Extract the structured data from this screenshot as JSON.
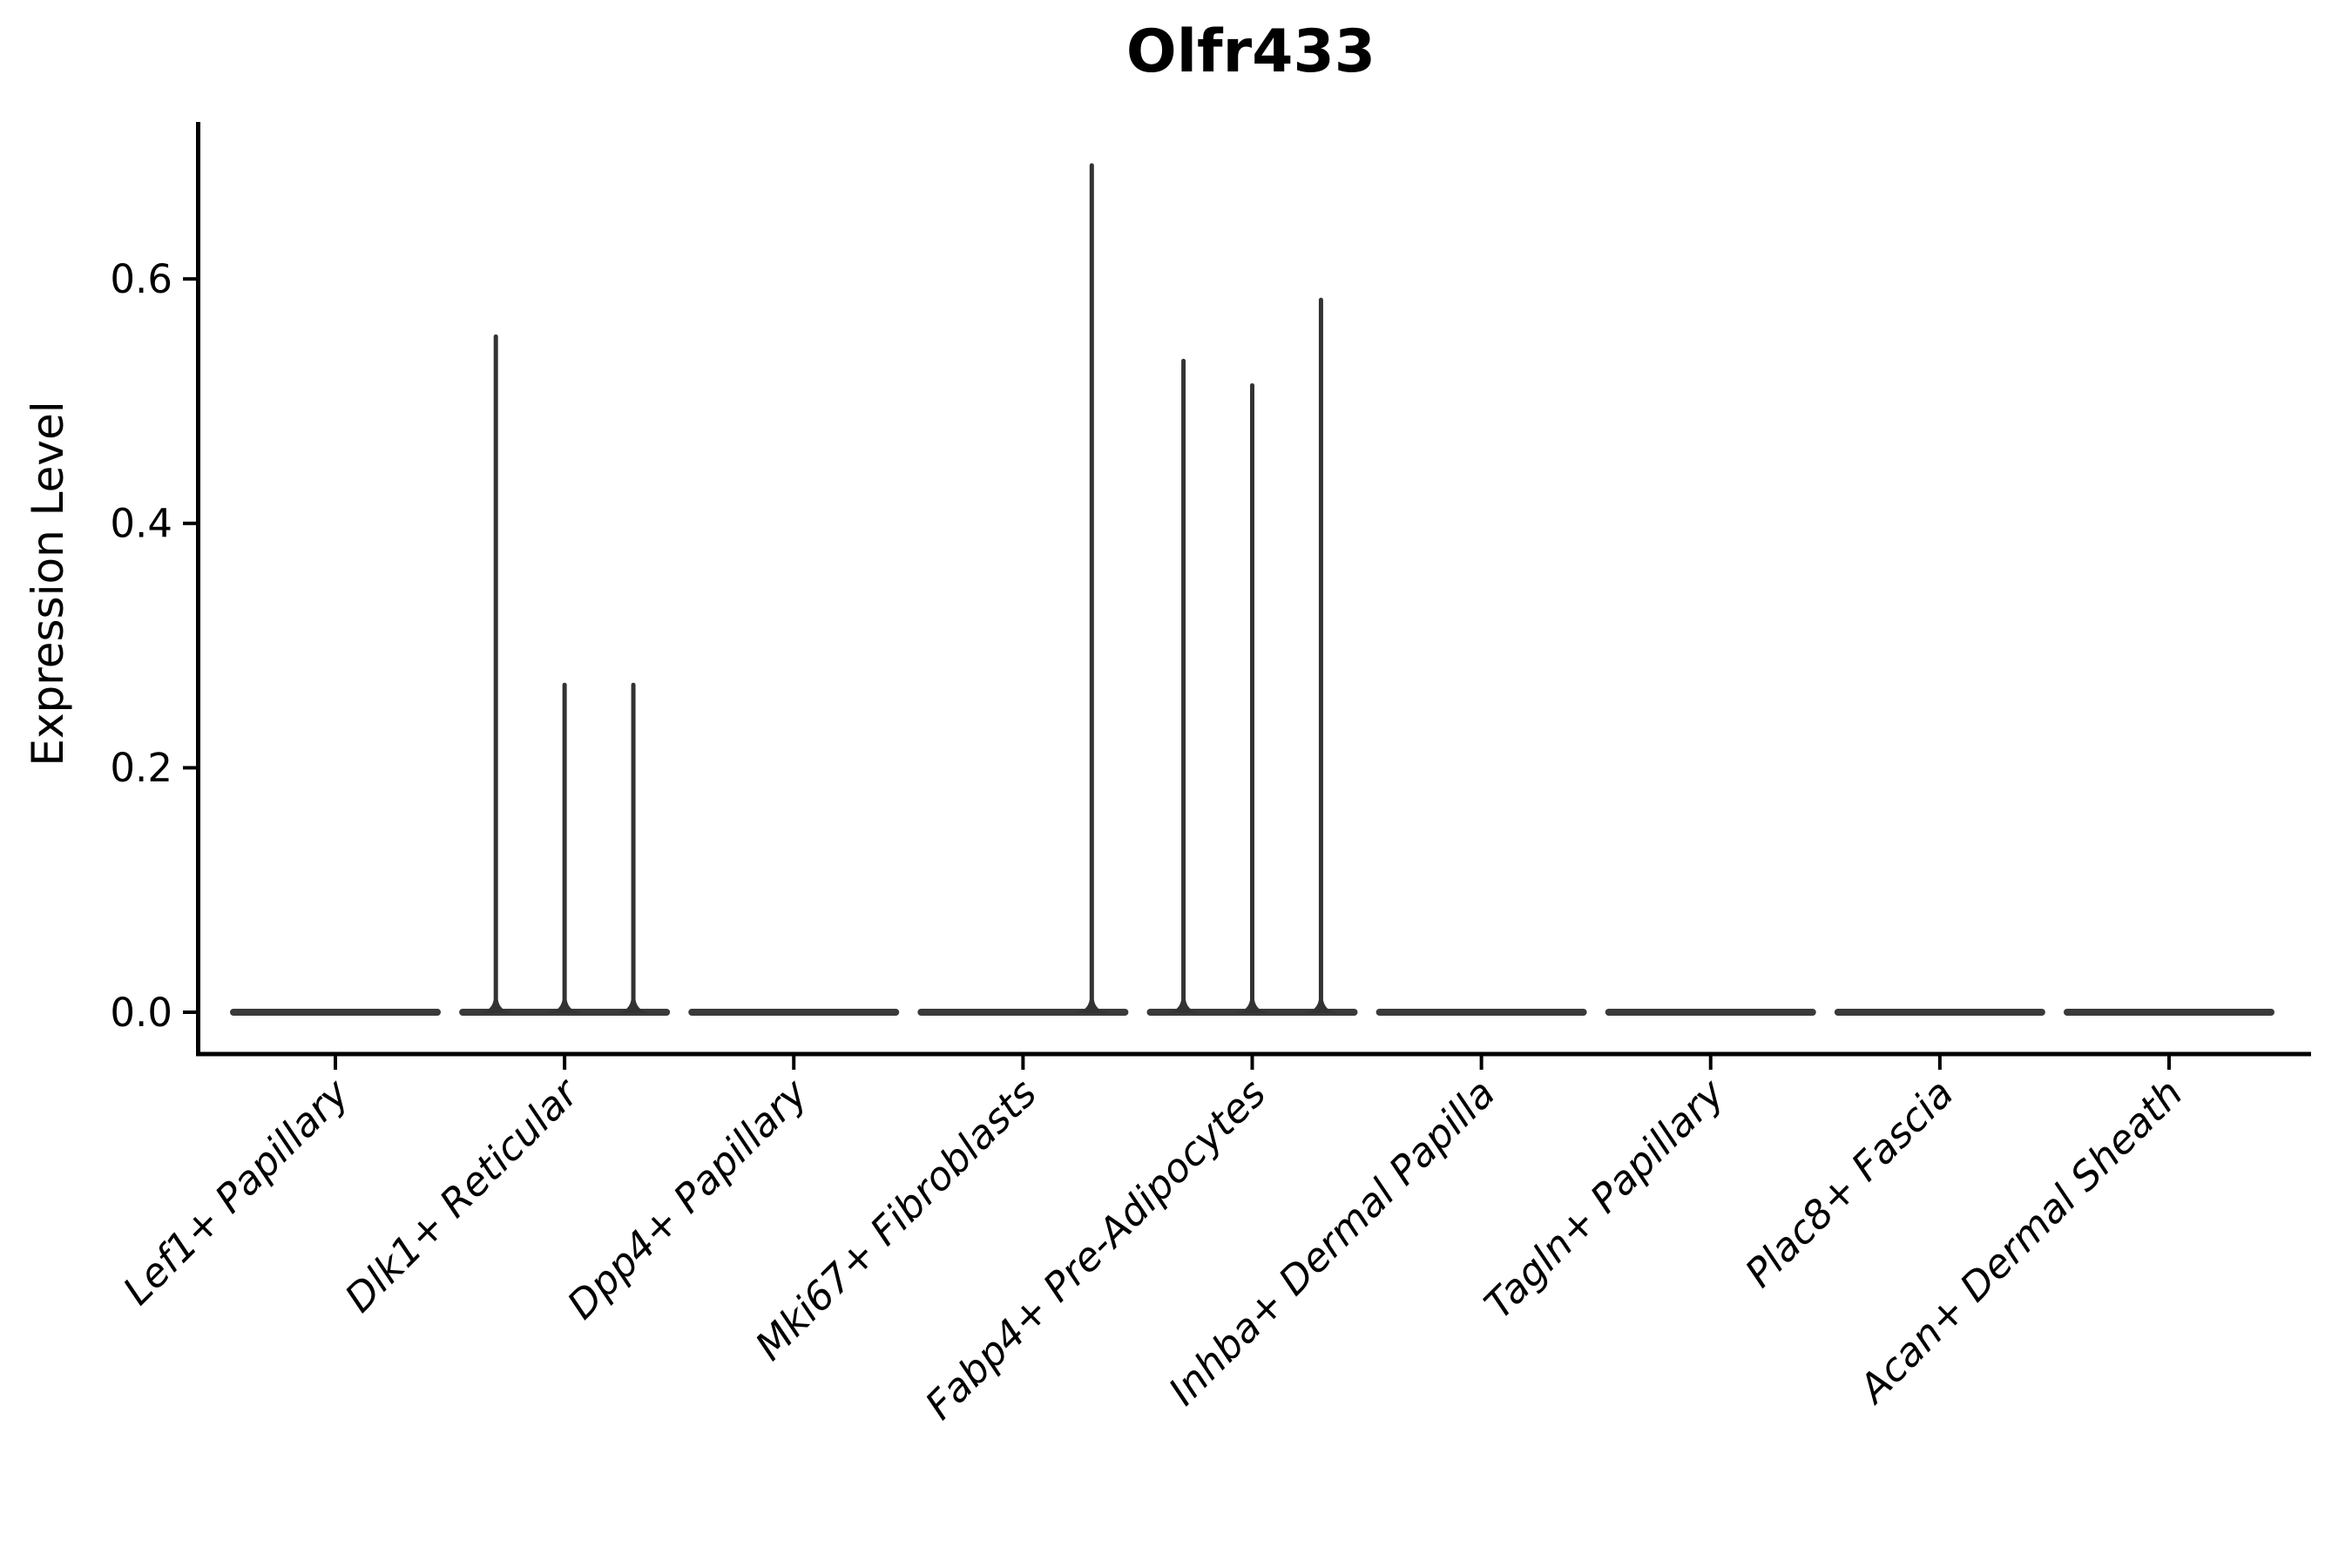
{
  "chart_data": {
    "type": "violin",
    "title": "Olfr433",
    "ylabel": "Expression Level",
    "xlabel": "",
    "categories": [
      "Lef1+ Papillary",
      "Dlk1+ Reticular",
      "Dpp4+ Papillary",
      "Mki67+ Fibroblasts",
      "Fabp4+ Pre-Adipocytes",
      "Inhba+ Dermal Papilla",
      "Tagln+ Papillary",
      "Plac8+ Fascia",
      "Acan+ Dermal Sheath"
    ],
    "ytick_labels": [
      "0.0",
      "0.2",
      "0.4",
      "0.6"
    ],
    "ytick_values": [
      0.0,
      0.2,
      0.4,
      0.6
    ],
    "ylim": [
      -0.034,
      0.73
    ],
    "grid": false,
    "legend": false,
    "xtick_rotation_degrees": 45,
    "violins": [
      {
        "category": "Lef1+ Papillary",
        "base_value": 0.0,
        "spikes": []
      },
      {
        "category": "Dlk1+ Reticular",
        "base_value": 0.0,
        "spikes": [
          {
            "offset": -0.3,
            "value": 0.555
          },
          {
            "offset": 0.0,
            "value": 0.27
          },
          {
            "offset": 0.3,
            "value": 0.27
          }
        ]
      },
      {
        "category": "Dpp4+ Papillary",
        "base_value": 0.0,
        "spikes": []
      },
      {
        "category": "Mki67+ Fibroblasts",
        "base_value": 0.0,
        "spikes": [
          {
            "offset": 0.3,
            "value": 0.695
          }
        ]
      },
      {
        "category": "Fabp4+ Pre-Adipocytes",
        "base_value": 0.0,
        "spikes": [
          {
            "offset": -0.3,
            "value": 0.535
          },
          {
            "offset": 0.0,
            "value": 0.515
          },
          {
            "offset": 0.3,
            "value": 0.585
          }
        ]
      },
      {
        "category": "Inhba+ Dermal Papilla",
        "base_value": 0.0,
        "spikes": []
      },
      {
        "category": "Tagln+ Papillary",
        "base_value": 0.0,
        "spikes": []
      },
      {
        "category": "Plac8+ Fascia",
        "base_value": 0.0,
        "spikes": []
      },
      {
        "category": "Acan+ Dermal Sheath",
        "base_value": 0.0,
        "spikes": []
      }
    ],
    "colors": {
      "violin": "#3a3a3a",
      "spike": "#333333",
      "axis": "#000000",
      "text": "#000000",
      "background": "#ffffff"
    }
  }
}
